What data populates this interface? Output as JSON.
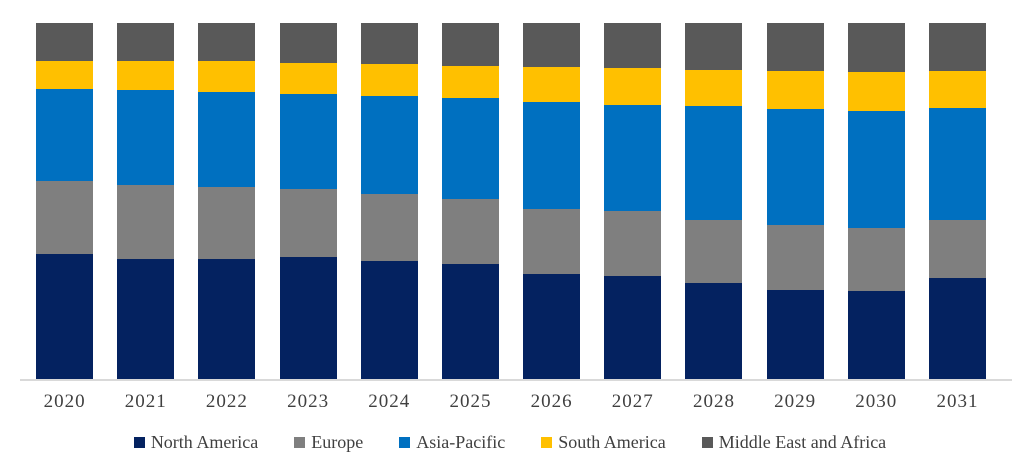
{
  "chart_data": {
    "type": "bar",
    "variant": "stacked-100-percent",
    "title": "",
    "xlabel": "",
    "ylabel": "",
    "ylim": [
      0,
      100
    ],
    "grid": false,
    "legend_position": "bottom",
    "categories": [
      "2020",
      "2021",
      "2022",
      "2023",
      "2024",
      "2025",
      "2026",
      "2027",
      "2028",
      "2029",
      "2030",
      "2031"
    ],
    "series": [
      {
        "name": "North America",
        "color": "#042260",
        "values": [
          35.1,
          33.7,
          33.7,
          34.3,
          33.2,
          32.4,
          29.4,
          29.0,
          27.0,
          24.9,
          24.6,
          28.5
        ]
      },
      {
        "name": "Europe",
        "color": "#7F7F7F",
        "values": [
          20.4,
          20.9,
          20.2,
          19.0,
          18.7,
          18.2,
          18.4,
          18.2,
          17.6,
          18.3,
          17.8,
          16.1
        ]
      },
      {
        "name": "Asia-Pacific",
        "color": "#0070C0",
        "values": [
          26.1,
          26.6,
          26.7,
          26.9,
          27.6,
          28.4,
          30.1,
          29.9,
          32.1,
          32.6,
          32.9,
          31.5
        ]
      },
      {
        "name": "South America",
        "color": "#FFC000",
        "values": [
          7.7,
          8.2,
          8.7,
          8.6,
          8.9,
          9.0,
          9.7,
          10.2,
          10.2,
          10.6,
          10.9,
          10.3
        ]
      },
      {
        "name": "Middle East and Africa",
        "color": "#595959",
        "values": [
          10.7,
          10.6,
          10.7,
          11.2,
          11.6,
          12.0,
          12.4,
          12.7,
          13.1,
          13.6,
          13.8,
          13.6
        ]
      }
    ],
    "axis_line_color": "#D9D9D9",
    "label_color": "#404040"
  }
}
